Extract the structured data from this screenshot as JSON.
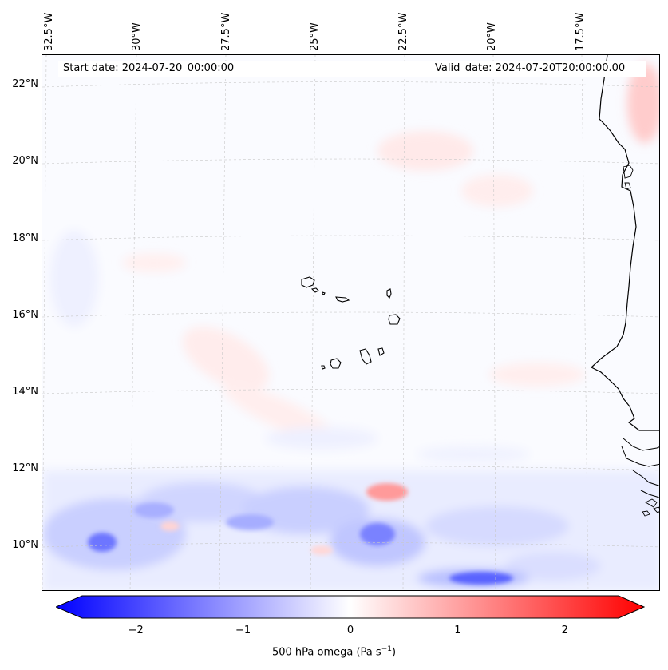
{
  "map": {
    "start_date": "Start date: 2024-07-20_00:00:00",
    "valid_date": "Valid_date: 2024-07-20T20:00:00.00",
    "lon_labels": [
      "32.5°W",
      "30°W",
      "27.5°W",
      "25°W",
      "22.5°W",
      "20°W",
      "17.5°W"
    ],
    "lat_labels": [
      "22°N",
      "20°N",
      "18°N",
      "16°N",
      "14°N",
      "12°N",
      "10°N"
    ],
    "variable": "500 hPa omega",
    "unit_symbol": "Pa s",
    "unit_exponent": "−1"
  },
  "colorbar": {
    "ticks": [
      "−2",
      "−1",
      "0",
      "1",
      "2"
    ],
    "tick_values": [
      -2,
      -1,
      0,
      1,
      2
    ],
    "range": [
      -2.5,
      2.5
    ],
    "colors": {
      "low": "#0000ff",
      "mid": "#ffffff",
      "high": "#ff0000"
    }
  },
  "colors": {
    "coastline": "#000000",
    "gridline": "#c8c8c8"
  }
}
